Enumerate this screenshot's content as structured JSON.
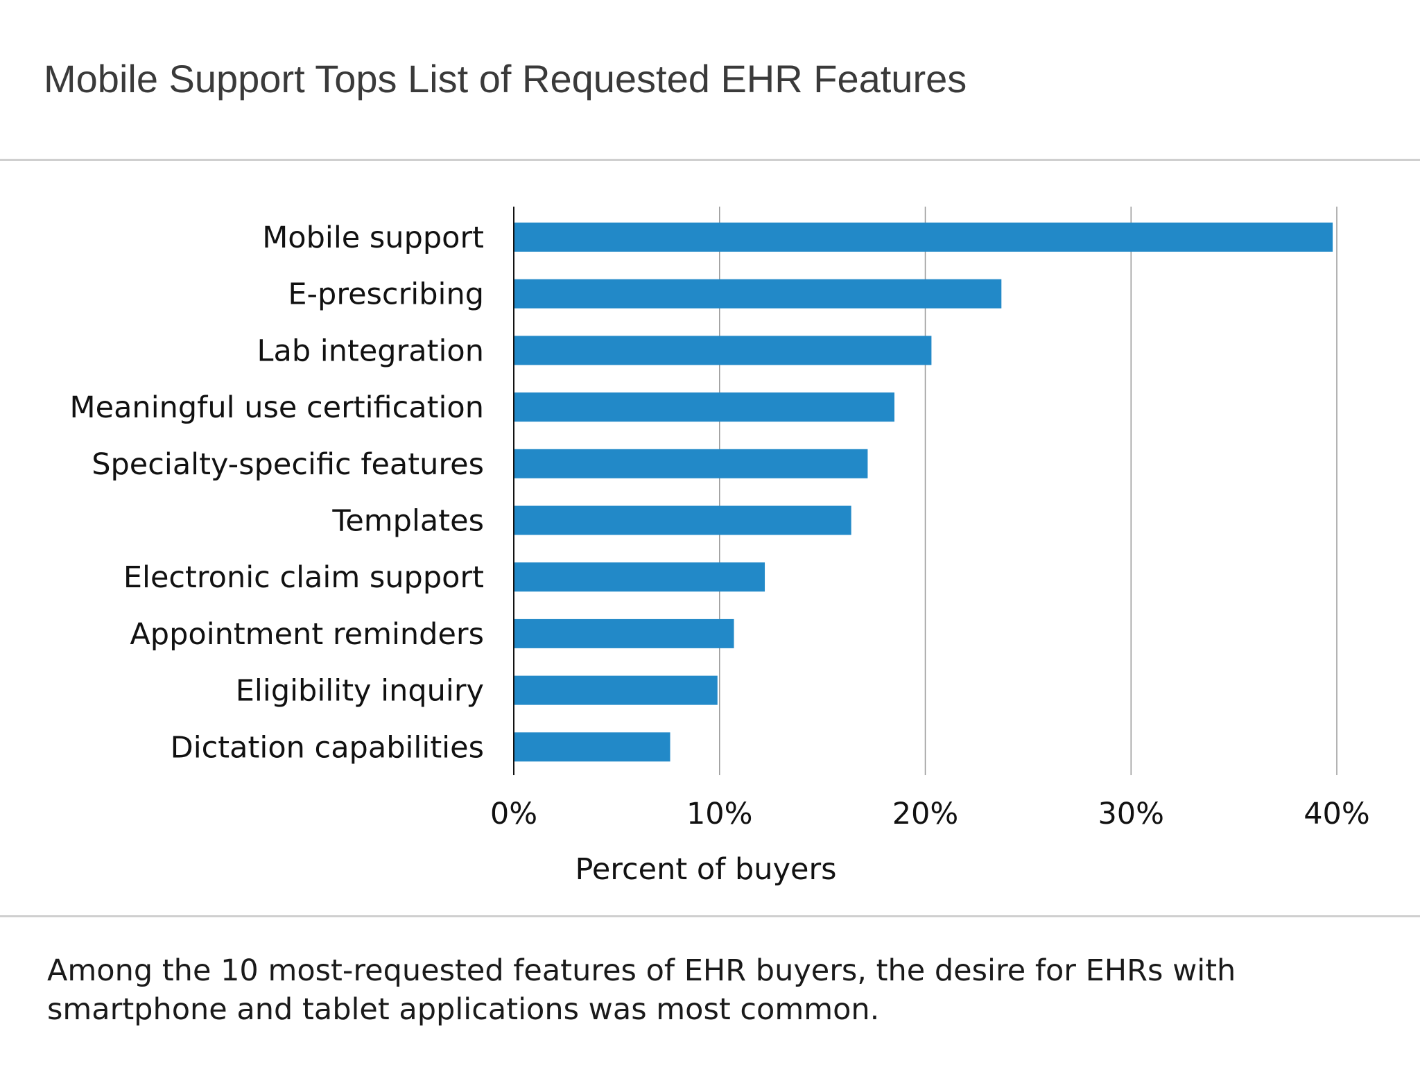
{
  "title": "Mobile Support Tops List of Requested EHR Features",
  "caption": "Among the 10 most-requested features of EHR buyers, the desire for EHRs with smartphone and tablet applications was most common.",
  "chart_data": {
    "type": "bar",
    "orientation": "horizontal",
    "title": "Mobile Support Tops List of Requested EHR Features",
    "xlabel": "Percent of buyers",
    "ylabel": "",
    "categories": [
      "Mobile support",
      "E-prescribing",
      "Lab integration",
      "Meaningful use certification",
      "Specialty-specific features",
      "Templates",
      "Electronic claim support",
      "Appointment reminders",
      "Eligibility inquiry",
      "Dictation capabilities"
    ],
    "values": [
      39.8,
      23.7,
      20.3,
      18.5,
      17.2,
      16.4,
      12.2,
      10.7,
      9.9,
      7.6
    ],
    "xlim": [
      0,
      40
    ],
    "xticks": [
      0,
      10,
      20,
      30,
      40
    ],
    "xtick_labels": [
      "0%",
      "10%",
      "20%",
      "30%",
      "40%"
    ],
    "grid": "vertical",
    "legend": "none",
    "bar_color": "#2289c8"
  }
}
